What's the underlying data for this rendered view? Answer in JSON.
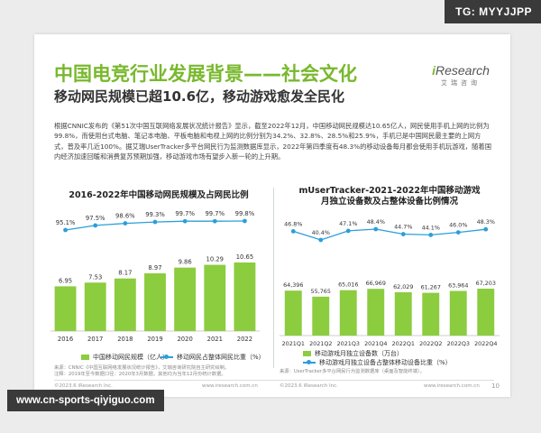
{
  "watermark_top": "TG: MYYJJPP",
  "watermark_bottom": "www.cn-sports-qiyiguo.com",
  "logo": {
    "brand_i": "i",
    "brand_rest": "Research",
    "sub": "艾瑞咨询"
  },
  "title": "中国电竞行业发展背景——社会文化",
  "subtitle": "移动网民规模已超10.6亿，移动游戏愈发全民化",
  "paragraph": "根据CNNIC发布的《第51次中国互联网络发展状况统计报告》显示，截至2022年12月，中国移动网民规模达10.65亿人，网民使用手机上网的比例为99.8%，而使用台式电脑、笔记本电脑、平板电脑和电视上网的比例分别为34.2%、32.8%、28.5%和25.9%，手机已是中国网民最主要的上网方式，普及率几近100%。据艾瑞UserTracker多平台网民行为监测数据库显示，2022年第四季度有48.3%的移动设备每月都会使用手机玩游戏，随着国内经济加速回暖和消费复苏预期加强，移动游戏市场有望步入新一轮的上升期。",
  "chart_data": [
    {
      "type": "bar+line",
      "title": "2016-2022年中国移动网民规模及占网民比例",
      "categories": [
        "2016",
        "2017",
        "2018",
        "2019",
        "2020",
        "2021",
        "2022"
      ],
      "series": [
        {
          "name": "中国移动网民规模（亿人）",
          "type": "bar",
          "values": [
            6.95,
            7.53,
            8.17,
            8.97,
            9.86,
            10.29,
            10.65
          ]
        },
        {
          "name": "移动网民占整体网民比重（%）",
          "type": "line",
          "values": [
            95.1,
            97.5,
            98.6,
            99.3,
            99.7,
            99.7,
            99.8
          ]
        }
      ],
      "bar_labels": [
        "6.95",
        "7.53",
        "8.17",
        "8.97",
        "9.86",
        "10.29",
        "10.65"
      ],
      "line_labels": [
        "95.1%",
        "97.5%",
        "98.6%",
        "99.3%",
        "99.7%",
        "99.7%",
        "99.8%"
      ],
      "colors": {
        "bar": "#8ccc3f",
        "line": "#2b9fd9"
      }
    },
    {
      "type": "bar+line",
      "title_line1": "mUserTracker-2021-2022年中国移动游戏",
      "title_line2": "月独立设备数及占整体设备比例情况",
      "categories": [
        "2021Q1",
        "2021Q2",
        "2021Q3",
        "2021Q4",
        "2022Q1",
        "2022Q2",
        "2022Q3",
        "2022Q4"
      ],
      "series": [
        {
          "name": "移动游戏月独立设备数（万台）",
          "type": "bar",
          "values": [
            64396,
            55765,
            65016,
            66969,
            62029,
            61267,
            63964,
            67203
          ]
        },
        {
          "name": "移动游戏月独立设备占整体移动设备比重（%）",
          "type": "line",
          "values": [
            46.8,
            40.4,
            47.1,
            48.4,
            44.7,
            44.1,
            46.0,
            48.3
          ]
        }
      ],
      "bar_labels": [
        "64,396",
        "55,765",
        "65,016",
        "66,969",
        "62,029",
        "61,267",
        "63,964",
        "67,203"
      ],
      "line_labels": [
        "46.8%",
        "40.4%",
        "47.1%",
        "48.4%",
        "44.7%",
        "44.1%",
        "46.0%",
        "48.3%"
      ],
      "colors": {
        "bar": "#8ccc3f",
        "line": "#2b9fd9"
      }
    }
  ],
  "legend1": {
    "bar": "中国移动网民规模（亿人）",
    "line": "移动网民占整体网民比重（%）"
  },
  "legend2": {
    "bar": "移动游戏月独立设备数（万台）",
    "line": "移动游戏月独立设备占整体移动设备比重（%）"
  },
  "note1_line1": "来源：CNNIC《中国互联网络发展状况统计报告》，艾瑞咨询研究院自主研究绘制。",
  "note1_line2": "注释：2019年至今数据口径：2020年3月数据，其他均为当年12月份统计数据。",
  "note2_line1": "来源：UserTracker多平台网民行为监测数据库（桌面及智能终端）。",
  "footer_left_1": "©2023.6 iResearch Inc.",
  "footer_right_1": "www.iresearch.com.cn",
  "footer_left_2": "©2023.6 iResearch Inc.",
  "footer_right_2": "www.iresearch.com.cn",
  "page_number": "10"
}
